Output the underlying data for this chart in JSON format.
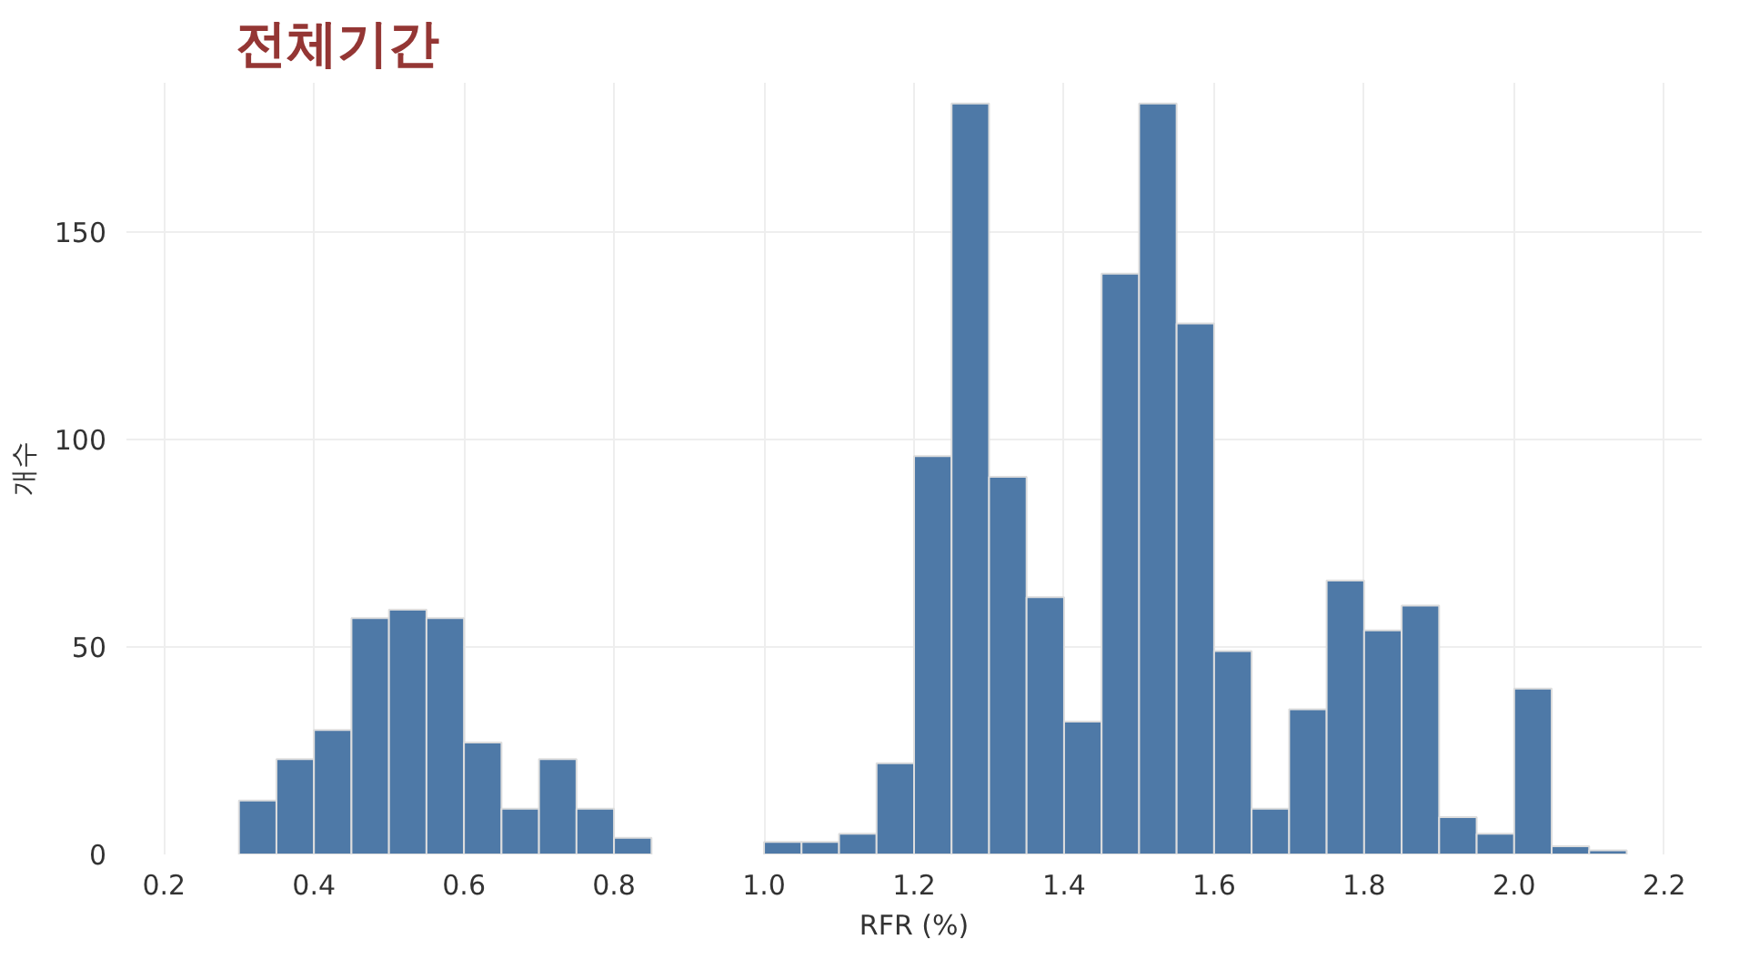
{
  "chart_data": {
    "type": "histogram",
    "title": "전체기간",
    "xlabel": "RFR (%)",
    "ylabel": "개수",
    "bins": [
      0.3,
      0.35,
      0.4,
      0.45,
      0.5,
      0.55,
      0.6,
      0.65,
      0.7,
      0.75,
      0.8,
      0.85,
      0.9,
      0.95,
      1.0,
      1.05,
      1.1,
      1.15,
      1.2,
      1.25,
      1.3,
      1.35,
      1.4,
      1.45,
      1.5,
      1.55,
      1.6,
      1.65,
      1.7,
      1.75,
      1.8,
      1.85,
      1.9,
      1.95,
      2.0,
      2.05,
      2.1,
      2.15
    ],
    "values": [
      13,
      23,
      30,
      57,
      59,
      57,
      27,
      11,
      23,
      11,
      4,
      0,
      0,
      0,
      3,
      3,
      5,
      22,
      96,
      181,
      91,
      62,
      32,
      140,
      181,
      128,
      49,
      11,
      35,
      66,
      54,
      60,
      9,
      5,
      40,
      2,
      1
    ],
    "color": "#4e79a7",
    "xlim": [
      0.15,
      2.25
    ],
    "xticks": [
      {
        "value": 0.2,
        "label": "0.2"
      },
      {
        "value": 0.4,
        "label": "0.4"
      },
      {
        "value": 0.6,
        "label": "0.6"
      },
      {
        "value": 0.8,
        "label": "0.8"
      },
      {
        "value": 1.0,
        "label": "1.0"
      },
      {
        "value": 1.2,
        "label": "1.2"
      },
      {
        "value": 1.4,
        "label": "1.4"
      },
      {
        "value": 1.6,
        "label": "1.6"
      },
      {
        "value": 1.8,
        "label": "1.8"
      },
      {
        "value": 2.0,
        "label": "2.0"
      },
      {
        "value": 2.2,
        "label": "2.2"
      }
    ],
    "ylim": [
      0,
      186
    ],
    "yticks": [
      0,
      50,
      100,
      150
    ],
    "grid": true
  }
}
